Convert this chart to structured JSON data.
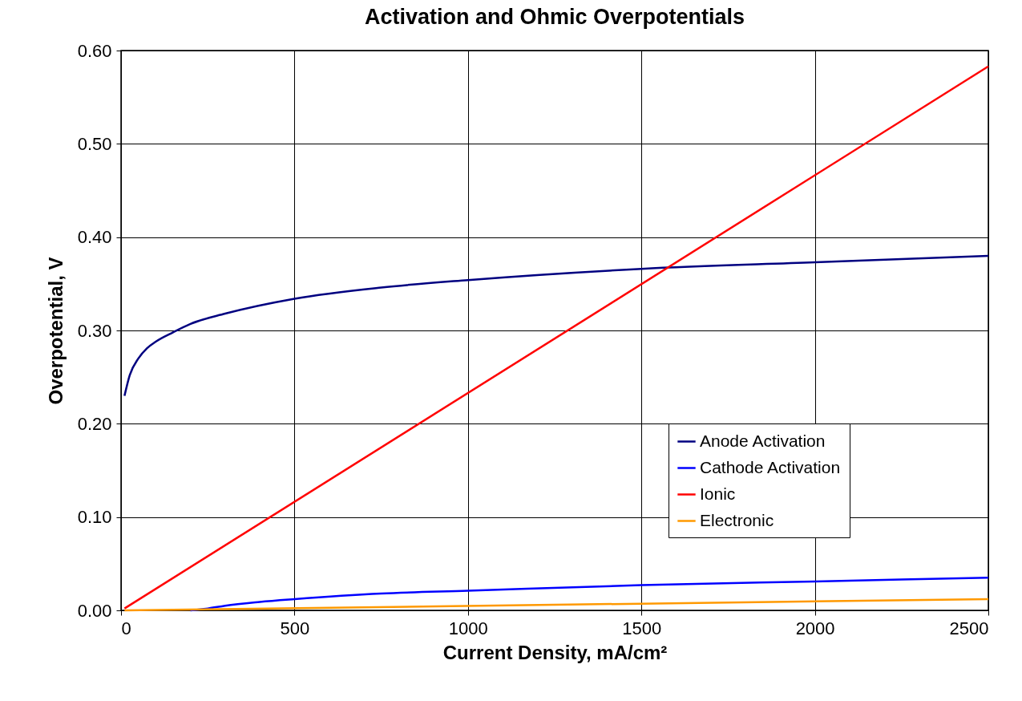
{
  "chart_data": {
    "type": "line",
    "title": "Activation and Ohmic Overpotentials",
    "xlabel": "Current Density, mA/cm²",
    "ylabel": "Overpotential, V",
    "xlim": [
      0,
      2500
    ],
    "xticks": [
      0,
      500,
      1000,
      1500,
      2000,
      2500
    ],
    "ylim": [
      0,
      0.6
    ],
    "yticks": [
      {
        "value": 0,
        "label": "0.00"
      },
      {
        "value": 0.1,
        "label": "0.10"
      },
      {
        "value": 0.2,
        "label": "0.20"
      },
      {
        "value": 0.3,
        "label": "0.30"
      },
      {
        "value": 0.4,
        "label": "0.40"
      },
      {
        "value": 0.5,
        "label": "0.50"
      },
      {
        "value": 0.6,
        "label": "0.60"
      }
    ],
    "grid": true,
    "legend": "bottom right",
    "series": [
      {
        "name": "Anode Activation",
        "color": "#000080",
        "x": [
          10,
          25,
          50,
          75,
          100,
          150,
          200,
          300,
          500,
          750,
          1000,
          1500,
          2000,
          2500
        ],
        "values": [
          0.23,
          0.252,
          0.27,
          0.281,
          0.288,
          0.298,
          0.307,
          0.318,
          0.334,
          0.346,
          0.354,
          0.366,
          0.373,
          0.38
        ]
      },
      {
        "name": "Cathode Activation",
        "color": "#0000ff",
        "x": [
          200,
          250,
          300,
          400,
          500,
          750,
          1000,
          1500,
          2000,
          2500
        ],
        "values": [
          0,
          0.002,
          0.005,
          0.009,
          0.012,
          0.018,
          0.021,
          0.027,
          0.031,
          0.035
        ]
      },
      {
        "name": "Ionic",
        "color": "#ff0000",
        "x": [
          10,
          2500
        ],
        "values": [
          0.002,
          0.583
        ]
      },
      {
        "name": "Electronic",
        "color": "#ff9900",
        "x": [
          10,
          2500
        ],
        "values": [
          0,
          0.012
        ]
      }
    ]
  }
}
